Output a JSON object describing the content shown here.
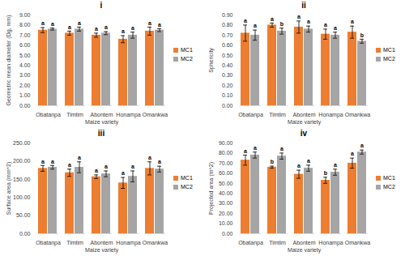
{
  "chart_data": [
    {
      "type": "bar",
      "title": "i",
      "x_label": "Maize variety",
      "y_label": "Geometric mean diameter (Dg, mm)",
      "categories": [
        "Obatanpa",
        "Timtim",
        "Abontem",
        "Honampa",
        "Omankwa"
      ],
      "series": [
        {
          "name": "MC1",
          "color": "#ed7d31",
          "values": [
            7.5,
            7.2,
            7.0,
            6.6,
            7.4
          ],
          "errors": [
            0.25,
            0.2,
            0.2,
            0.35,
            0.4
          ],
          "letters": [
            "a",
            "a",
            "a",
            "a",
            "a"
          ]
        },
        {
          "name": "MC2",
          "color": "#a5a5a5",
          "values": [
            7.6,
            7.6,
            7.2,
            7.0,
            7.5
          ],
          "errors": [
            0.1,
            0.2,
            0.15,
            0.3,
            0.15
          ],
          "letters": [
            "a",
            "a",
            "a",
            "a",
            "a"
          ]
        }
      ],
      "ylim": [
        0,
        9
      ],
      "yticks": [
        {
          "value": 0,
          "label": "0.00"
        },
        {
          "value": 1,
          "label": "1.00"
        },
        {
          "value": 2,
          "label": "2.00"
        },
        {
          "value": 3,
          "label": "3.00"
        },
        {
          "value": 4,
          "label": "4.00"
        },
        {
          "value": 5,
          "label": "5.00"
        },
        {
          "value": 6,
          "label": "6.00"
        },
        {
          "value": 7,
          "label": "7.00"
        },
        {
          "value": 8,
          "label": "8.00"
        },
        {
          "value": 9,
          "label": "9.00"
        }
      ],
      "legend": "right"
    },
    {
      "type": "bar",
      "title": "ii",
      "x_label": "Maize variety",
      "y_label": "Sphericity",
      "categories": [
        "Obatanpa",
        "Timtim",
        "Abontem",
        "Honampa",
        "Omankwa"
      ],
      "series": [
        {
          "name": "MC1",
          "color": "#ed7d31",
          "values": [
            0.72,
            0.8,
            0.78,
            0.71,
            0.73
          ],
          "errors": [
            0.08,
            0.02,
            0.06,
            0.05,
            0.06
          ],
          "letters": [
            "a",
            "a",
            "a",
            "a",
            "a"
          ]
        },
        {
          "name": "MC2",
          "color": "#a5a5a5",
          "values": [
            0.7,
            0.74,
            0.76,
            0.7,
            0.64
          ],
          "errors": [
            0.05,
            0.03,
            0.03,
            0.03,
            0.02
          ],
          "letters": [
            "a",
            "b",
            "a",
            "a",
            "b"
          ]
        }
      ],
      "ylim": [
        0,
        0.9
      ],
      "yticks": [
        {
          "value": 0,
          "label": "0.00"
        },
        {
          "value": 0.1,
          "label": "0.10"
        },
        {
          "value": 0.2,
          "label": "0.20"
        },
        {
          "value": 0.3,
          "label": "0.30"
        },
        {
          "value": 0.4,
          "label": "0.40"
        },
        {
          "value": 0.5,
          "label": "0.50"
        },
        {
          "value": 0.6,
          "label": "0.60"
        },
        {
          "value": 0.7,
          "label": "0.70"
        },
        {
          "value": 0.8,
          "label": "0.80"
        },
        {
          "value": 0.9,
          "label": "0.90"
        }
      ],
      "legend": "right"
    },
    {
      "type": "bar",
      "title": "iii",
      "x_label": "Maize variety",
      "y_label": "Surface area (mm^2)",
      "categories": [
        "Obatanpa",
        "Timtim",
        "Abontem",
        "Honampa",
        "Omankwa"
      ],
      "series": [
        {
          "name": "MC1",
          "color": "#ed7d31",
          "values": [
            180,
            168,
            157,
            140,
            180
          ],
          "errors": [
            8,
            10,
            5,
            15,
            18
          ],
          "letters": [
            "a",
            "a",
            "a",
            "a",
            "a"
          ]
        },
        {
          "name": "MC2",
          "color": "#a5a5a5",
          "values": [
            183,
            183,
            165,
            158,
            178
          ],
          "errors": [
            5,
            15,
            8,
            15,
            8
          ],
          "letters": [
            "a",
            "a",
            "a",
            "a",
            "a"
          ]
        }
      ],
      "ylim": [
        0,
        250
      ],
      "yticks": [
        {
          "value": 0,
          "label": "0.00"
        },
        {
          "value": 50,
          "label": "50.00"
        },
        {
          "value": 100,
          "label": "100.00"
        },
        {
          "value": 150,
          "label": "150.00"
        },
        {
          "value": 200,
          "label": "200.00"
        },
        {
          "value": 250,
          "label": "250.00"
        }
      ],
      "legend": "right"
    },
    {
      "type": "bar",
      "title": "iv",
      "x_label": "Maize variety",
      "y_label": "Projected area (m^2)",
      "categories": [
        "Obatanpa",
        "Timtim",
        "Abontem",
        "Honampa",
        "Omankwa"
      ],
      "series": [
        {
          "name": "MC1",
          "color": "#ed7d31",
          "values": [
            73,
            66,
            59,
            53,
            70
          ],
          "errors": [
            5,
            1,
            4,
            3,
            5
          ],
          "letters": [
            "a",
            "b",
            "a",
            "b",
            "a"
          ]
        },
        {
          "name": "MC2",
          "color": "#a5a5a5",
          "values": [
            78,
            77,
            65,
            61,
            81
          ],
          "errors": [
            3,
            3,
            3,
            3,
            2
          ],
          "letters": [
            "a",
            "a",
            "a",
            "a",
            "a"
          ]
        }
      ],
      "ylim": [
        0,
        90
      ],
      "yticks": [
        {
          "value": 0,
          "label": "0.00"
        },
        {
          "value": 10,
          "label": "10.00"
        },
        {
          "value": 20,
          "label": "20.00"
        },
        {
          "value": 30,
          "label": "30.00"
        },
        {
          "value": 40,
          "label": "40.00"
        },
        {
          "value": 50,
          "label": "50.00"
        },
        {
          "value": 60,
          "label": "60.00"
        },
        {
          "value": 70,
          "label": "70.00"
        },
        {
          "value": 80,
          "label": "80.00"
        },
        {
          "value": 90,
          "label": "90.00"
        }
      ],
      "legend": "right"
    }
  ]
}
